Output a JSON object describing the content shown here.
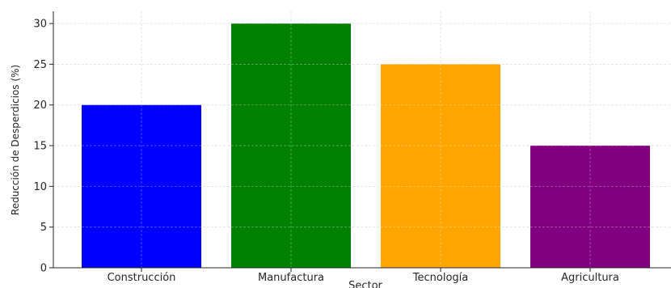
{
  "chart_data": {
    "type": "bar",
    "categories": [
      "Construcción",
      "Manufactura",
      "Tecnología",
      "Agricultura"
    ],
    "values": [
      20,
      30,
      25,
      15
    ],
    "colors": [
      "#0000ff",
      "#008000",
      "#ffa500",
      "#800080"
    ],
    "xlabel": "Sector",
    "ylabel": "Reducción de Desperdicios (%)",
    "ylim": [
      0,
      31.5
    ],
    "yticks": [
      0,
      5,
      10,
      15,
      20,
      25,
      30
    ],
    "grid": true
  }
}
